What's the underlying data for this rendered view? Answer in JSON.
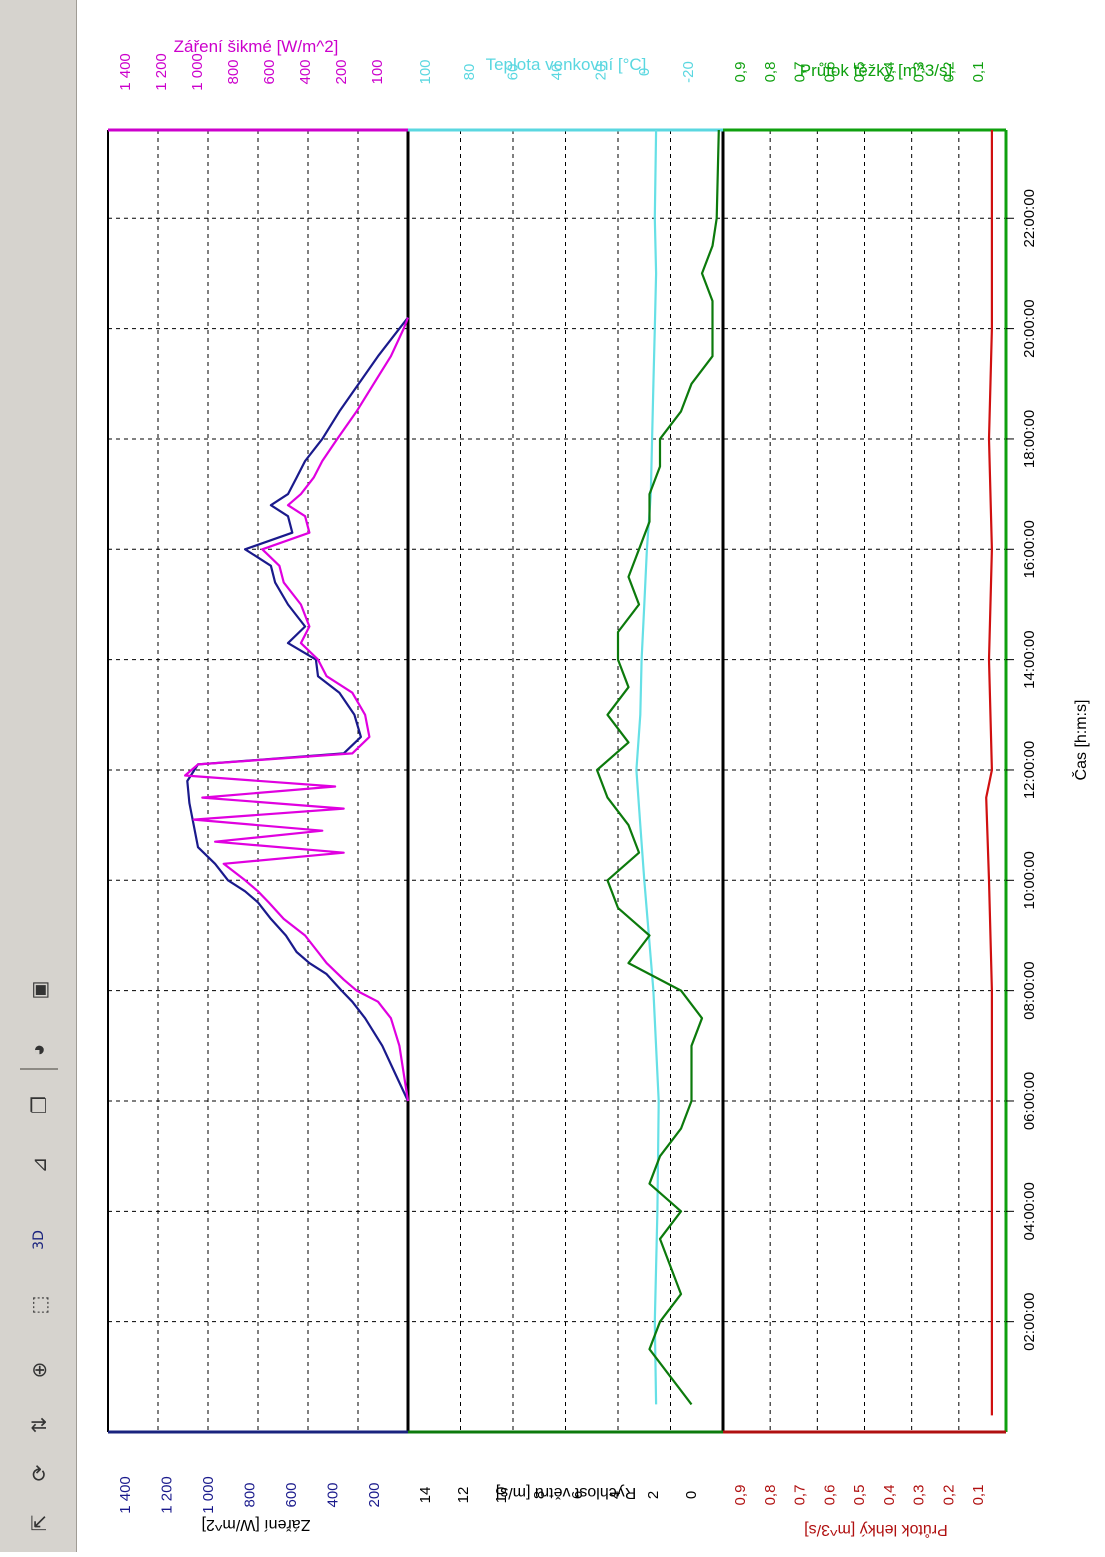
{
  "toolbar": {
    "items": [
      {
        "name": "pointer-icon",
        "glyph": "⇱"
      },
      {
        "name": "refresh-icon",
        "glyph": "⟳"
      },
      {
        "name": "axis-scale-icon",
        "glyph": "⇅"
      },
      {
        "name": "zoom-in-icon",
        "glyph": "⊕"
      },
      {
        "name": "export-icon",
        "glyph": "⬚"
      },
      {
        "name": "three-d-toggle",
        "glyph": "3D"
      },
      {
        "name": "axes-icon",
        "glyph": "⊿"
      },
      {
        "name": "copy-icon",
        "glyph": "❐"
      },
      {
        "name": "palette-icon",
        "glyph": "◕"
      },
      {
        "name": "save-icon",
        "glyph": "▣"
      }
    ]
  },
  "chart_data": {
    "type": "line",
    "orientation": "rotated-90",
    "x": {
      "label": "Čas [h:m:s]",
      "ticks": [
        "02:00:00",
        "04:00:00",
        "06:00:00",
        "08:00:00",
        "10:00:00",
        "12:00:00",
        "14:00:00",
        "16:00:00",
        "18:00:00",
        "20:00:00",
        "22:00:00"
      ],
      "range_hours": [
        0.1,
        23.6
      ]
    },
    "panels": [
      {
        "id": "radiation",
        "left_label": "Záření [W/m^2]",
        "right_label": "Záření šikmé [W/m^2]",
        "left_ticks": [
          "1 400",
          "1 200",
          "1 000",
          "800",
          "600",
          "400",
          "200"
        ],
        "right_ticks": [
          "1 400",
          "1 200",
          "1 000",
          "800",
          "600",
          "400",
          "200",
          "100"
        ],
        "range": [
          0,
          1400
        ],
        "series": [
          {
            "color": "#1a1a8c",
            "points": [
              [
                6.0,
                0
              ],
              [
                6.5,
                60
              ],
              [
                7.0,
                120
              ],
              [
                7.5,
                200
              ],
              [
                7.8,
                260
              ],
              [
                8.0,
                310
              ],
              [
                8.3,
                380
              ],
              [
                8.5,
                460
              ],
              [
                8.7,
                520
              ],
              [
                9.0,
                570
              ],
              [
                9.3,
                640
              ],
              [
                9.6,
                700
              ],
              [
                9.8,
                760
              ],
              [
                10.0,
                840
              ],
              [
                10.3,
                900
              ],
              [
                10.6,
                980
              ],
              [
                11.0,
                1000
              ],
              [
                11.4,
                1020
              ],
              [
                11.8,
                1030
              ],
              [
                12.1,
                980
              ],
              [
                12.3,
                300
              ],
              [
                12.6,
                220
              ],
              [
                13.0,
                250
              ],
              [
                13.4,
                320
              ],
              [
                13.7,
                420
              ],
              [
                14.0,
                430
              ],
              [
                14.3,
                560
              ],
              [
                14.6,
                480
              ],
              [
                15.0,
                560
              ],
              [
                15.4,
                620
              ],
              [
                15.7,
                640
              ],
              [
                16.0,
                760
              ],
              [
                16.3,
                540
              ],
              [
                16.6,
                560
              ],
              [
                16.8,
                640
              ],
              [
                17.0,
                560
              ],
              [
                17.3,
                520
              ],
              [
                17.6,
                480
              ],
              [
                18.0,
                400
              ],
              [
                18.5,
                320
              ],
              [
                19.0,
                230
              ],
              [
                19.5,
                140
              ],
              [
                20.0,
                40
              ],
              [
                20.2,
                0
              ]
            ]
          },
          {
            "color": "#e000e0",
            "points": [
              [
                6.0,
                0
              ],
              [
                6.5,
                20
              ],
              [
                7.0,
                40
              ],
              [
                7.5,
                80
              ],
              [
                7.8,
                140
              ],
              [
                8.0,
                240
              ],
              [
                8.2,
                300
              ],
              [
                8.5,
                380
              ],
              [
                8.7,
                420
              ],
              [
                9.0,
                480
              ],
              [
                9.3,
                580
              ],
              [
                9.6,
                650
              ],
              [
                9.8,
                700
              ],
              [
                10.0,
                760
              ],
              [
                10.3,
                860
              ],
              [
                10.5,
                300
              ],
              [
                10.7,
                900
              ],
              [
                10.9,
                400
              ],
              [
                11.1,
                1000
              ],
              [
                11.3,
                300
              ],
              [
                11.5,
                960
              ],
              [
                11.7,
                340
              ],
              [
                11.9,
                1040
              ],
              [
                12.1,
                980
              ],
              [
                12.3,
                260
              ],
              [
                12.6,
                180
              ],
              [
                13.0,
                200
              ],
              [
                13.4,
                260
              ],
              [
                13.7,
                380
              ],
              [
                14.0,
                420
              ],
              [
                14.3,
                500
              ],
              [
                14.6,
                460
              ],
              [
                15.0,
                500
              ],
              [
                15.4,
                580
              ],
              [
                15.7,
                600
              ],
              [
                16.0,
                680
              ],
              [
                16.3,
                460
              ],
              [
                16.6,
                480
              ],
              [
                16.8,
                560
              ],
              [
                17.0,
                500
              ],
              [
                17.3,
                440
              ],
              [
                17.6,
                400
              ],
              [
                18.0,
                330
              ],
              [
                18.5,
                240
              ],
              [
                19.0,
                160
              ],
              [
                19.5,
                80
              ],
              [
                20.0,
                20
              ],
              [
                20.2,
                0
              ]
            ]
          }
        ]
      },
      {
        "id": "wind",
        "left_label": "Rychlost větru [m/s]",
        "right_label": "Teplota venkovní [°C]",
        "left_ticks": [
          "14",
          "12",
          "10",
          "8",
          "6",
          "4",
          "2",
          "0"
        ],
        "right_ticks": [
          "100",
          "80",
          "60",
          "40",
          "20",
          "0",
          "-20"
        ],
        "left_range": [
          0,
          15
        ],
        "right_range": [
          -20,
          100
        ],
        "series": [
          {
            "axis": "right",
            "color": "#66e0e6",
            "points": [
              [
                0.5,
                5.5
              ],
              [
                2,
                6.0
              ],
              [
                4,
                5.0
              ],
              [
                6,
                4.5
              ],
              [
                8,
                6.5
              ],
              [
                10,
                10.0
              ],
              [
                11,
                11.5
              ],
              [
                12,
                13.0
              ],
              [
                13,
                11.5
              ],
              [
                14,
                11.0
              ],
              [
                15,
                10.0
              ],
              [
                16,
                9.0
              ],
              [
                17,
                7.5
              ],
              [
                18,
                7.0
              ],
              [
                19,
                6.5
              ],
              [
                20,
                6.0
              ],
              [
                21,
                5.5
              ],
              [
                22,
                6.0
              ],
              [
                23.6,
                5.5
              ]
            ]
          },
          {
            "axis": "left",
            "color": "#0c7a0c",
            "points": [
              [
                0.5,
                1.5
              ],
              [
                1,
                2.5
              ],
              [
                1.5,
                3.5
              ],
              [
                2,
                3.0
              ],
              [
                2.5,
                2.0
              ],
              [
                3,
                2.5
              ],
              [
                3.5,
                3.0
              ],
              [
                4,
                2.0
              ],
              [
                4.5,
                3.5
              ],
              [
                5,
                3.0
              ],
              [
                5.5,
                2.0
              ],
              [
                6,
                1.5
              ],
              [
                6.5,
                1.5
              ],
              [
                7,
                1.5
              ],
              [
                7.5,
                1.0
              ],
              [
                8,
                2.0
              ],
              [
                8.5,
                4.5
              ],
              [
                9,
                3.5
              ],
              [
                9.5,
                5.0
              ],
              [
                10,
                5.5
              ],
              [
                10.5,
                4.0
              ],
              [
                11,
                4.5
              ],
              [
                11.5,
                5.5
              ],
              [
                12,
                6.0
              ],
              [
                12.5,
                4.5
              ],
              [
                13,
                5.5
              ],
              [
                13.5,
                4.5
              ],
              [
                14,
                5.0
              ],
              [
                14.5,
                5.0
              ],
              [
                15,
                4.0
              ],
              [
                15.5,
                4.5
              ],
              [
                16,
                4.0
              ],
              [
                16.5,
                3.5
              ],
              [
                17,
                3.5
              ],
              [
                17.5,
                3.0
              ],
              [
                18,
                3.0
              ],
              [
                18.5,
                2.0
              ],
              [
                19,
                1.5
              ],
              [
                19.5,
                0.5
              ],
              [
                20,
                0.5
              ],
              [
                20.5,
                0.5
              ],
              [
                21,
                1.0
              ],
              [
                21.5,
                0.5
              ],
              [
                22,
                0.3
              ],
              [
                23.6,
                0.2
              ]
            ]
          }
        ]
      },
      {
        "id": "flow",
        "left_label": "Průtok lehký [m^3/s]",
        "right_label": "Průtok těžký [m^3/s]",
        "left_ticks": [
          "0,9",
          "0,8",
          "0,7",
          "0,6",
          "0,5",
          "0,4",
          "0,3",
          "0,2",
          "0,1"
        ],
        "right_ticks": [
          "0,9",
          "0,8",
          "0,7",
          "0,6",
          "0,5",
          "0,4",
          "0,3",
          "0,2",
          "0,1"
        ],
        "range": [
          0,
          1
        ],
        "series": [
          {
            "color": "#d01010",
            "points": [
              [
                0.3,
                0.05
              ],
              [
                2,
                0.05
              ],
              [
                4,
                0.05
              ],
              [
                6,
                0.05
              ],
              [
                8,
                0.05
              ],
              [
                10,
                0.06
              ],
              [
                11.5,
                0.07
              ],
              [
                12,
                0.05
              ],
              [
                14,
                0.06
              ],
              [
                16,
                0.05
              ],
              [
                18,
                0.06
              ],
              [
                20,
                0.05
              ],
              [
                22,
                0.05
              ],
              [
                23.6,
                0.05
              ]
            ]
          }
        ]
      }
    ],
    "colors": {
      "grid": "#000000",
      "axis_time": "#1a237e",
      "radiation_axis": "#cc00cc",
      "wind_axis": "#5ad7e0",
      "flow_axis": "#0fa00f"
    },
    "grid": true
  }
}
